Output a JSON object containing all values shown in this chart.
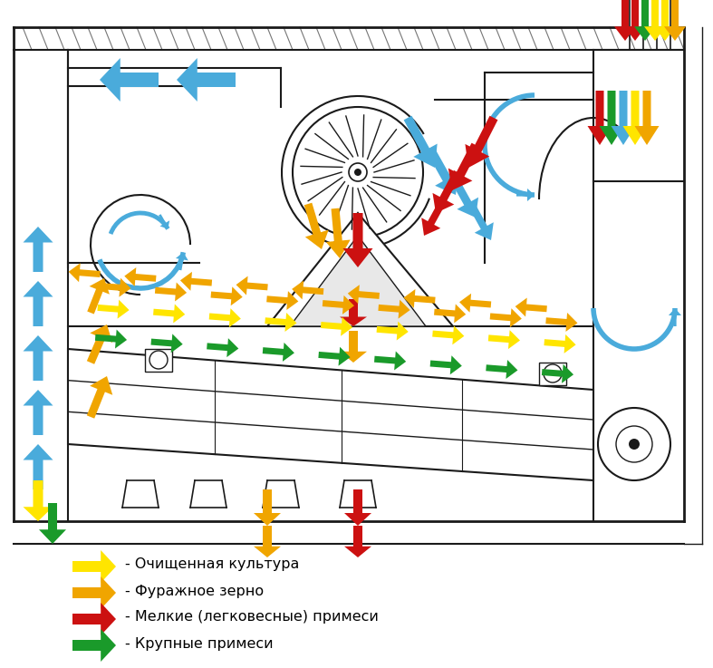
{
  "bg_color": "#FFFFFF",
  "lc": "#1a1a1a",
  "blue": "#4AABDB",
  "yellow": "#FFE500",
  "orange": "#F0A500",
  "red": "#CC1111",
  "green": "#1A9A2A",
  "legend_items": [
    {
      "color": "#FFE500",
      "label": "- Очищенная культура"
    },
    {
      "color": "#F0A500",
      "label": "- Фуражное зерно"
    },
    {
      "color": "#CC1111",
      "label": "- Мелкие (легковесные) примеси"
    },
    {
      "color": "#1A9A2A",
      "label": "- Крупные примеси"
    }
  ],
  "fig_w": 7.87,
  "fig_h": 7.37,
  "dpi": 100
}
